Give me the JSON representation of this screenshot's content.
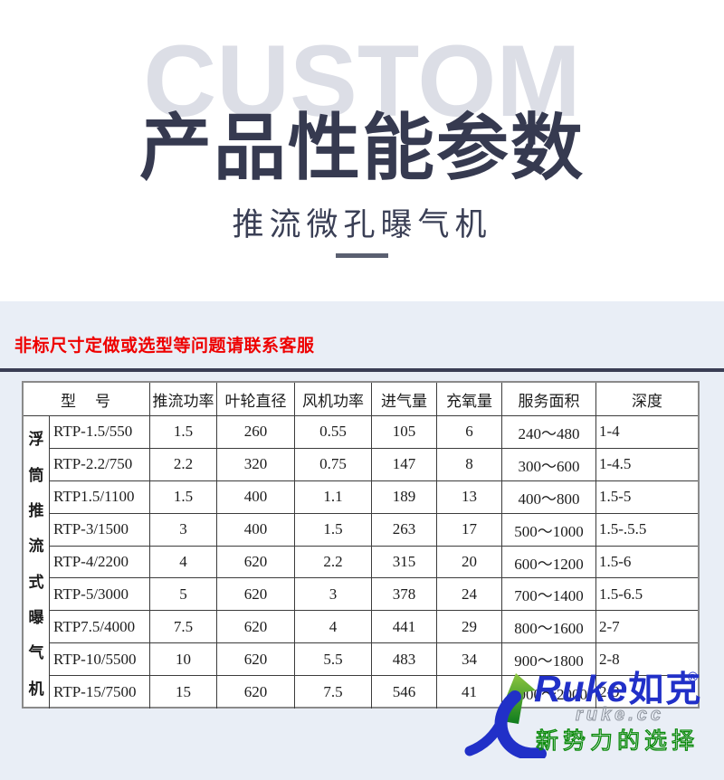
{
  "header": {
    "watermark": "CUSTOM",
    "title": "产品性能参数",
    "subtitle": "推流微孔曝气机"
  },
  "notice": {
    "text": "非标尺寸定做或选型等问题请联系客服"
  },
  "table": {
    "category_label": "浮筒推流式曝气机",
    "model_header": "型　号",
    "columns": [
      "推流功率",
      "叶轮直径",
      "风机功率",
      "进气量",
      "充氧量",
      "服务面积",
      "深度"
    ],
    "rows": [
      {
        "model": "RTP-1.5/550",
        "push_power": "1.5",
        "impeller": "260",
        "fan_power": "0.55",
        "air_intake": "105",
        "oxygen": "6",
        "service_area": "240～480",
        "depth": "1-4"
      },
      {
        "model": "RTP-2.2/750",
        "push_power": "2.2",
        "impeller": "320",
        "fan_power": "0.75",
        "air_intake": "147",
        "oxygen": "8",
        "service_area": "300～600",
        "depth": "1-4.5"
      },
      {
        "model": "RTP1.5/1100",
        "push_power": "1.5",
        "impeller": "400",
        "fan_power": "1.1",
        "air_intake": "189",
        "oxygen": "13",
        "service_area": "400～800",
        "depth": "1.5-5"
      },
      {
        "model": "RTP-3/1500",
        "push_power": "3",
        "impeller": "400",
        "fan_power": "1.5",
        "air_intake": "263",
        "oxygen": "17",
        "service_area": "500～1000",
        "depth": "1.5-.5.5"
      },
      {
        "model": "RTP-4/2200",
        "push_power": "4",
        "impeller": "620",
        "fan_power": "2.2",
        "air_intake": "315",
        "oxygen": "20",
        "service_area": "600～1200",
        "depth": "1.5-6"
      },
      {
        "model": "RTP-5/3000",
        "push_power": "5",
        "impeller": "620",
        "fan_power": "3",
        "air_intake": "378",
        "oxygen": "24",
        "service_area": "700～1400",
        "depth": "1.5-6.5"
      },
      {
        "model": "RTP7.5/4000",
        "push_power": "7.5",
        "impeller": "620",
        "fan_power": "4",
        "air_intake": "441",
        "oxygen": "29",
        "service_area": "800～1600",
        "depth": "2-7"
      },
      {
        "model": "RTP-10/5500",
        "push_power": "10",
        "impeller": "620",
        "fan_power": "5.5",
        "air_intake": "483",
        "oxygen": "34",
        "service_area": "900～1800",
        "depth": "2-8"
      },
      {
        "model": "RTP-15/7500",
        "push_power": "15",
        "impeller": "620",
        "fan_power": "7.5",
        "air_intake": "546",
        "oxygen": "41",
        "service_area": "1000～2000",
        "depth": "2-9"
      }
    ]
  },
  "logo": {
    "brand": "Ruke",
    "brand_cn": "如克",
    "reg_mark": "®",
    "domain": "ruke.cc",
    "slogan": "新势力的选择"
  },
  "colors": {
    "title_navy": "#363a50",
    "watermark_gray": "#dcdee6",
    "notice_red": "#ee0000",
    "section_blue": "#e9eef6",
    "logo_blue": "#2130c8",
    "slogan_green": "#0a8a0a"
  }
}
